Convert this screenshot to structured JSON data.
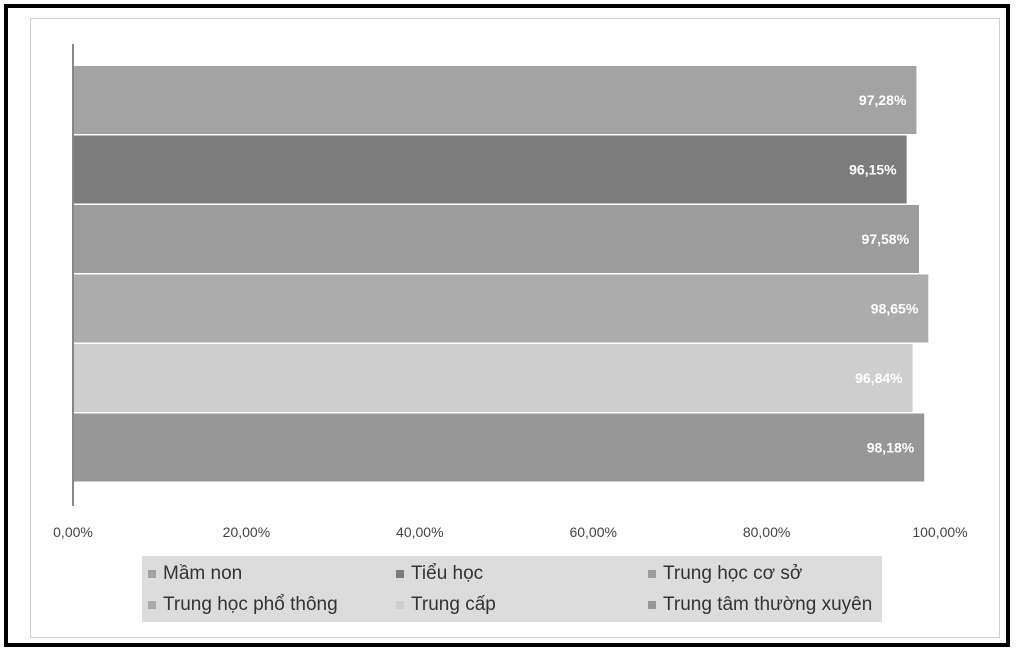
{
  "chart_data": {
    "type": "bar",
    "orientation": "horizontal",
    "categories": [
      "Mầm non",
      "Tiểu học",
      "Trung học cơ sở",
      "Trung học phổ thông",
      "Trung cấp",
      "Trung tâm thường xuyên"
    ],
    "values": [
      97.28,
      96.15,
      97.58,
      98.65,
      96.84,
      98.18
    ],
    "data_labels": [
      "97,28%",
      "96,15%",
      "97,58%",
      "98,65%",
      "96,84%",
      "98,18%"
    ],
    "colors": [
      "#a3a3a3",
      "#7c7c7c",
      "#9c9c9c",
      "#acacac",
      "#cecece",
      "#979797"
    ],
    "xlim": [
      0,
      100
    ],
    "x_ticks": [
      0,
      20,
      40,
      60,
      80,
      100
    ],
    "x_tick_labels": [
      "0,00%",
      "20,00%",
      "40,00%",
      "60,00%",
      "80,00%",
      "100,00%"
    ],
    "title": "",
    "xlabel": "",
    "ylabel": "",
    "grid": false,
    "legend_position": "bottom",
    "legend": [
      "Mầm non",
      "Tiểu học",
      "Trung học cơ sở",
      "Trung học phổ thông",
      "Trung cấp",
      "Trung tâm thường xuyên"
    ]
  }
}
